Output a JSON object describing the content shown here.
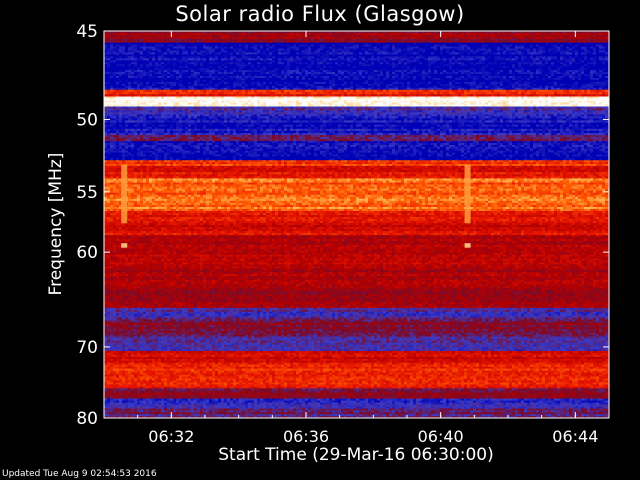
{
  "chart_data": {
    "type": "heatmap",
    "title": "Solar radio Flux (Glasgow)",
    "xlabel": "Start Time (29-Mar-16 06:30:00)",
    "ylabel": "Frequency [MHz]",
    "x_ticks": [
      "06:32",
      "06:36",
      "06:40",
      "06:44"
    ],
    "x_tick_minutes": [
      2,
      6,
      10,
      14
    ],
    "x_range_minutes": [
      0,
      15
    ],
    "y_ticks": [
      45,
      50,
      55,
      60,
      70,
      80
    ],
    "y_range_mhz": [
      45,
      80
    ],
    "y_scale": "reciprocal",
    "colormap": [
      "#0000b4",
      "#3c3cc8",
      "#7a0a28",
      "#b40000",
      "#e61400",
      "#ff5a00",
      "#ffc864",
      "#ffffff"
    ],
    "bands": [
      {
        "f_low": 45.0,
        "f_high": 45.6,
        "level": 0.35
      },
      {
        "f_low": 45.6,
        "f_high": 48.2,
        "level": 0.02
      },
      {
        "f_low": 48.2,
        "f_high": 48.6,
        "level": 0.6
      },
      {
        "f_low": 48.6,
        "f_high": 49.2,
        "level": 1.0
      },
      {
        "f_low": 49.2,
        "f_high": 49.8,
        "level": 0.15
      },
      {
        "f_low": 49.8,
        "f_high": 51.0,
        "level": 0.05
      },
      {
        "f_low": 51.0,
        "f_high": 51.4,
        "level": 0.25
      },
      {
        "f_low": 51.4,
        "f_high": 52.7,
        "level": 0.03
      },
      {
        "f_low": 52.7,
        "f_high": 53.1,
        "level": 0.65
      },
      {
        "f_low": 53.1,
        "f_high": 54.0,
        "level": 0.55
      },
      {
        "f_low": 54.0,
        "f_high": 56.5,
        "level": 0.72
      },
      {
        "f_low": 56.5,
        "f_high": 58.5,
        "level": 0.52
      },
      {
        "f_low": 58.5,
        "f_high": 61.5,
        "level": 0.45
      },
      {
        "f_low": 61.5,
        "f_high": 63.0,
        "level": 0.42
      },
      {
        "f_low": 63.0,
        "f_high": 65.5,
        "level": 0.38
      },
      {
        "f_low": 65.5,
        "f_high": 67.0,
        "level": 0.18
      },
      {
        "f_low": 67.0,
        "f_high": 68.5,
        "level": 0.3
      },
      {
        "f_low": 68.5,
        "f_high": 70.5,
        "level": 0.2
      },
      {
        "f_low": 70.5,
        "f_high": 72.0,
        "level": 0.5
      },
      {
        "f_low": 72.0,
        "f_high": 75.5,
        "level": 0.6
      },
      {
        "f_low": 75.5,
        "f_high": 77.0,
        "level": 0.3
      },
      {
        "f_low": 77.0,
        "f_high": 78.5,
        "level": 0.12
      },
      {
        "f_low": 78.5,
        "f_high": 80.0,
        "level": 0.22
      }
    ],
    "bursts": [
      {
        "t_minutes": 0.6,
        "f_low": 53.0,
        "f_high": 57.5,
        "level": 0.8
      },
      {
        "t_minutes": 10.8,
        "f_low": 53.0,
        "f_high": 57.5,
        "level": 0.8
      },
      {
        "t_minutes": 0.6,
        "f_low": 59.2,
        "f_high": 59.6,
        "level": 0.9
      },
      {
        "t_minutes": 10.8,
        "f_low": 59.2,
        "f_high": 59.6,
        "level": 0.9
      }
    ]
  },
  "footer": {
    "updated_text": "Updated Tue Aug  9 02:54:53 2016"
  }
}
